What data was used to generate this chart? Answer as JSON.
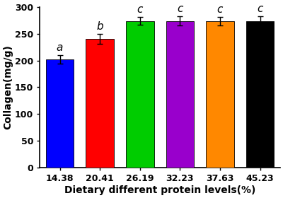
{
  "categories": [
    "14.38",
    "20.41",
    "26.19",
    "32.23",
    "37.63",
    "45.23"
  ],
  "values": [
    202,
    240,
    274,
    274,
    273,
    274
  ],
  "errors": [
    8,
    9,
    7,
    8,
    8,
    9
  ],
  "bar_colors": [
    "#0000FF",
    "#FF0000",
    "#00CC00",
    "#9900CC",
    "#FF8800",
    "#000000"
  ],
  "letters": [
    "a",
    "b",
    "c",
    "c",
    "c",
    "c"
  ],
  "ylabel": "Collagen(mg/g)",
  "xlabel": "Dietary different protein levels(%)",
  "ylim": [
    0,
    300
  ],
  "yticks": [
    0,
    50,
    100,
    150,
    200,
    250,
    300
  ],
  "background_color": "#ffffff",
  "bar_width": 0.7,
  "letter_fontsize": 11,
  "axis_label_fontsize": 10,
  "tick_fontsize": 9
}
